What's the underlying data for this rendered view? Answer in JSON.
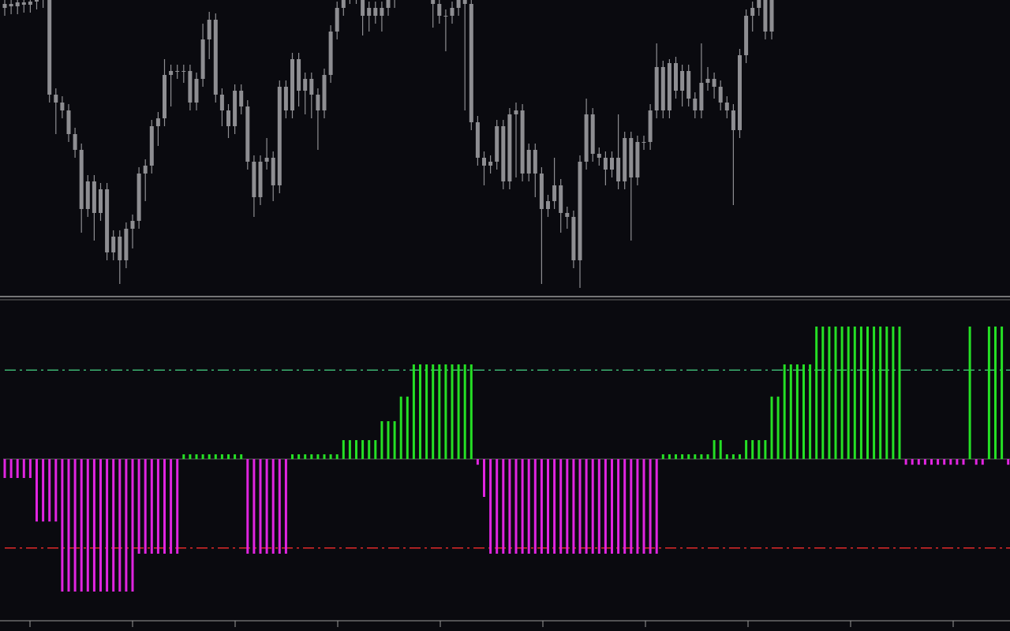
{
  "chart_data": [
    {
      "type": "candlestick",
      "color": "#8e8e92",
      "ylim": [
        0,
        375
      ],
      "open": [
        365,
        370,
        367,
        372,
        369,
        373,
        375,
        378,
        255,
        245,
        235,
        205,
        185,
        110,
        145,
        105,
        135,
        55,
        75,
        45,
        85,
        95,
        155,
        165,
        215,
        225,
        280,
        285,
        285,
        285,
        245,
        275,
        325,
        350,
        255,
        235,
        215,
        260,
        240,
        170,
        125,
        170,
        175,
        140,
        265,
        235,
        300,
        260,
        275,
        255,
        235,
        280,
        335,
        365,
        380,
        385,
        380,
        355,
        365,
        355,
        365,
        375,
        395,
        405,
        405,
        400,
        395,
        385,
        370,
        355,
        355,
        365,
        380,
        370,
        220,
        175,
        165,
        170,
        215,
        145,
        230,
        235,
        155,
        185,
        155,
        110,
        120,
        140,
        105,
        100,
        45,
        170,
        230,
        180,
        175,
        160,
        175,
        145,
        200,
        150,
        195,
        195,
        235,
        290,
        235,
        295,
        260,
        285,
        250,
        235,
        270,
        275,
        265,
        245,
        235,
        210,
        305,
        355,
        365,
        375,
        335
      ],
      "high": [
        378,
        378,
        380,
        380,
        381,
        383,
        386,
        386,
        263,
        253,
        243,
        213,
        193,
        153,
        153,
        143,
        143,
        83,
        83,
        93,
        103,
        163,
        173,
        223,
        233,
        300,
        293,
        293,
        293,
        293,
        283,
        345,
        360,
        358,
        263,
        243,
        268,
        268,
        248,
        178,
        178,
        200,
        183,
        273,
        273,
        308,
        308,
        283,
        283,
        263,
        288,
        343,
        373,
        388,
        393,
        393,
        388,
        373,
        373,
        373,
        383,
        403,
        413,
        413,
        413,
        408,
        403,
        393,
        378,
        363,
        373,
        388,
        388,
        378,
        228,
        183,
        178,
        223,
        223,
        238,
        245,
        243,
        193,
        193,
        163,
        128,
        175,
        148,
        113,
        108,
        178,
        250,
        238,
        188,
        183,
        183,
        230,
        208,
        208,
        203,
        203,
        243,
        320,
        298,
        300,
        303,
        293,
        293,
        258,
        320,
        290,
        283,
        273,
        253,
        243,
        313,
        363,
        373,
        383,
        383,
        393
      ],
      "low": [
        355,
        357,
        357,
        359,
        359,
        363,
        365,
        245,
        205,
        225,
        195,
        175,
        80,
        100,
        70,
        95,
        45,
        45,
        15,
        35,
        60,
        85,
        120,
        155,
        190,
        215,
        240,
        275,
        270,
        235,
        235,
        265,
        300,
        245,
        215,
        200,
        205,
        230,
        160,
        100,
        115,
        160,
        120,
        130,
        225,
        225,
        240,
        230,
        225,
        185,
        225,
        270,
        325,
        355,
        370,
        370,
        330,
        335,
        345,
        335,
        355,
        365,
        385,
        395,
        390,
        385,
        375,
        340,
        345,
        310,
        345,
        355,
        235,
        210,
        165,
        140,
        155,
        160,
        135,
        135,
        150,
        145,
        145,
        125,
        15,
        100,
        110,
        80,
        85,
        35,
        10,
        160,
        170,
        165,
        140,
        150,
        135,
        135,
        70,
        140,
        185,
        185,
        225,
        225,
        225,
        250,
        240,
        240,
        225,
        225,
        260,
        250,
        235,
        225,
        115,
        200,
        295,
        335,
        355,
        325,
        325
      ],
      "close": [
        370,
        367,
        372,
        369,
        373,
        375,
        378,
        255,
        245,
        235,
        205,
        185,
        110,
        145,
        105,
        135,
        55,
        75,
        45,
        85,
        95,
        155,
        165,
        215,
        225,
        280,
        285,
        285,
        285,
        245,
        275,
        325,
        350,
        255,
        235,
        215,
        260,
        240,
        170,
        125,
        170,
        175,
        140,
        265,
        235,
        300,
        260,
        275,
        255,
        235,
        280,
        335,
        365,
        380,
        385,
        380,
        355,
        365,
        355,
        365,
        375,
        395,
        405,
        405,
        400,
        395,
        385,
        370,
        355,
        355,
        365,
        380,
        370,
        220,
        175,
        165,
        170,
        215,
        145,
        230,
        235,
        155,
        185,
        155,
        110,
        120,
        140,
        105,
        100,
        45,
        170,
        230,
        180,
        175,
        160,
        175,
        145,
        200,
        150,
        195,
        195,
        235,
        290,
        235,
        295,
        260,
        285,
        250,
        235,
        270,
        275,
        265,
        245,
        235,
        210,
        305,
        355,
        365,
        375,
        335,
        385
      ]
    },
    {
      "type": "bar",
      "positive_color": "#25e025",
      "negative_color": "#e025e0",
      "ylim": [
        -8.5,
        8.5
      ],
      "levels": [
        {
          "value": 4.7,
          "color": "#3cb371"
        },
        {
          "value": -4.7,
          "color": "#e02a2a"
        }
      ],
      "values": [
        -1,
        -1,
        -1,
        -1,
        -1,
        -3.3,
        -3.3,
        -3.3,
        -3.3,
        -7,
        -7,
        -7,
        -7,
        -7,
        -7,
        -7,
        -7,
        -7,
        -7,
        -7,
        -7,
        -5,
        -5,
        -5,
        -5,
        -5,
        -5,
        -5,
        0.25,
        0.25,
        0.25,
        0.25,
        0.25,
        0.25,
        0.25,
        0.25,
        0.25,
        0.25,
        -5,
        -5,
        -5,
        -5,
        -5,
        -5,
        -5,
        0.25,
        0.25,
        0.25,
        0.25,
        0.25,
        0.25,
        0.25,
        0.25,
        1,
        1,
        1,
        1,
        1,
        1,
        2,
        2,
        2,
        3.3,
        3.3,
        5,
        5,
        5,
        5,
        5,
        5,
        5,
        5,
        5,
        5,
        -0.3,
        -2,
        -5,
        -5,
        -5,
        -5,
        -5,
        -5,
        -5,
        -5,
        -5,
        -5,
        -5,
        -5,
        -5,
        -5,
        -5,
        -5,
        -5,
        -5,
        -5,
        -5,
        -5,
        -5,
        -5,
        -5,
        -5,
        -5,
        -5,
        0.25,
        0.25,
        0.25,
        0.25,
        0.25,
        0.25,
        0.25,
        0.25,
        1,
        1,
        0.25,
        0.25,
        0.25,
        1,
        1,
        1,
        1,
        3.3,
        3.3,
        5,
        5,
        5,
        5,
        5,
        7,
        7,
        7,
        7,
        7,
        7,
        7,
        7,
        7,
        7,
        7,
        7,
        7,
        7,
        -0.3,
        -0.3,
        -0.3,
        -0.3,
        -0.3,
        -0.3,
        -0.3,
        -0.3,
        -0.3,
        -0.3,
        7,
        -0.3,
        -0.3,
        7,
        7,
        7,
        -0.3
      ]
    }
  ]
}
